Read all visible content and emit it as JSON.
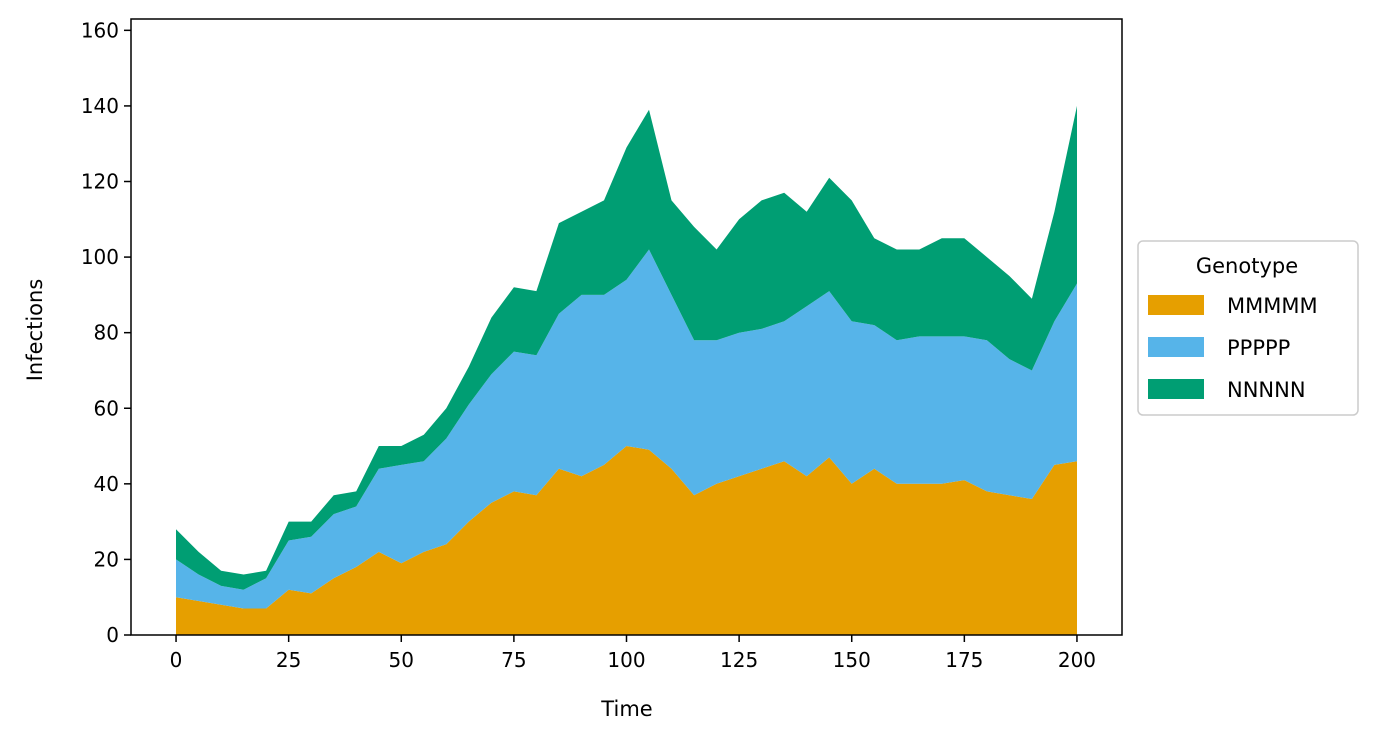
{
  "chart_data": {
    "type": "area",
    "stacked": true,
    "xlabel": "Time",
    "ylabel": "Infections",
    "xlim": [
      -10,
      210
    ],
    "ylim": [
      0,
      163
    ],
    "xticks": [
      0,
      25,
      50,
      75,
      100,
      125,
      150,
      175,
      200
    ],
    "yticks": [
      0,
      20,
      40,
      60,
      80,
      100,
      120,
      140,
      160
    ],
    "x": [
      0,
      5,
      10,
      15,
      20,
      25,
      30,
      35,
      40,
      45,
      50,
      55,
      60,
      65,
      70,
      75,
      80,
      85,
      90,
      95,
      100,
      105,
      110,
      115,
      120,
      125,
      130,
      135,
      140,
      145,
      150,
      155,
      160,
      165,
      170,
      175,
      180,
      185,
      190,
      195,
      200
    ],
    "legend": {
      "title": "Genotype",
      "placement": "center-right-outside"
    },
    "series": [
      {
        "name": "MMMMM",
        "color": "#E69F00",
        "values": [
          10,
          9,
          8,
          7,
          7,
          12,
          11,
          15,
          18,
          22,
          19,
          22,
          24,
          30,
          35,
          38,
          37,
          44,
          42,
          45,
          50,
          49,
          44,
          37,
          40,
          42,
          44,
          46,
          42,
          47,
          40,
          44,
          40,
          40,
          40,
          41,
          38,
          37,
          36,
          45,
          46
        ]
      },
      {
        "name": "PPPPP",
        "color": "#56B4E9",
        "values": [
          10,
          7,
          5,
          5,
          8,
          13,
          15,
          17,
          16,
          22,
          26,
          24,
          28,
          31,
          34,
          37,
          37,
          41,
          48,
          45,
          44,
          53,
          46,
          41,
          38,
          38,
          37,
          37,
          45,
          44,
          43,
          38,
          38,
          39,
          39,
          38,
          40,
          36,
          34,
          38,
          47
        ]
      },
      {
        "name": "NNNNN",
        "color": "#009E73",
        "values": [
          8,
          6,
          4,
          4,
          2,
          5,
          4,
          5,
          4,
          6,
          5,
          7,
          8,
          10,
          15,
          17,
          17,
          24,
          22,
          25,
          35,
          37,
          25,
          30,
          24,
          30,
          34,
          34,
          25,
          30,
          32,
          23,
          24,
          23,
          26,
          26,
          22,
          22,
          19,
          29,
          47
        ]
      }
    ]
  }
}
